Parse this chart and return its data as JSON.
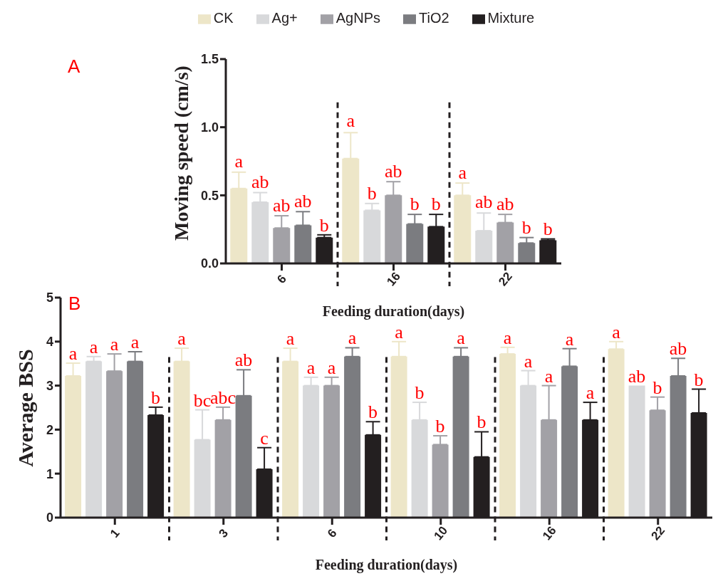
{
  "chart_data": [
    {
      "type": "bar",
      "categories": [
        "6",
        "16",
        "22"
      ],
      "xlabel": "Feeding duration(days)",
      "ylabel": "Moving speed (cm/s)",
      "ylim": [
        0,
        1.5
      ],
      "yticks": [
        {
          "value": 0,
          "label": "0.0"
        },
        {
          "value": 0.5,
          "label": "0.5"
        },
        {
          "value": 1,
          "label": "1.0"
        },
        {
          "value": 1.5,
          "label": "1.5"
        }
      ],
      "legend": "top",
      "annotations": [
        "A"
      ],
      "series": [
        {
          "name": "CK",
          "color": "#ede6c8",
          "values": [
            0.55,
            0.77,
            0.5
          ],
          "errors": [
            [
              0.55,
              0.67
            ],
            [
              0.77,
              0.96
            ],
            [
              0.5,
              0.59
            ]
          ],
          "value_labels": [
            "a",
            "a",
            "a"
          ]
        },
        {
          "name": "Ag+",
          "color": "#d8d9db",
          "values": [
            0.45,
            0.39,
            0.24
          ],
          "errors": [
            [
              0.45,
              0.52
            ],
            [
              0.39,
              0.44
            ],
            [
              0.24,
              0.37
            ]
          ],
          "value_labels": [
            "ab",
            "b",
            "ab"
          ]
        },
        {
          "name": "AgNPs",
          "color": "#a2a1a6",
          "values": [
            0.26,
            0.5,
            0.3
          ],
          "errors": [
            [
              0.26,
              0.35
            ],
            [
              0.5,
              0.6
            ],
            [
              0.3,
              0.36
            ]
          ],
          "value_labels": [
            "ab",
            "ab",
            "ab"
          ]
        },
        {
          "name": "TiO2",
          "color": "#7b7c80",
          "values": [
            0.28,
            0.29,
            0.15
          ],
          "errors": [
            [
              0.28,
              0.38
            ],
            [
              0.29,
              0.36
            ],
            [
              0.15,
              0.19
            ]
          ],
          "value_labels": [
            "ab",
            "b",
            "b"
          ]
        },
        {
          "name": "Mixture",
          "color": "#231f20",
          "values": [
            0.19,
            0.27,
            0.17
          ],
          "errors": [
            [
              0.19,
              0.21
            ],
            [
              0.27,
              0.36
            ],
            [
              0.17,
              0.18
            ]
          ],
          "value_labels": [
            "b",
            "b",
            "b"
          ]
        }
      ]
    },
    {
      "type": "bar",
      "categories": [
        "1",
        "3",
        "6",
        "10",
        "16",
        "22"
      ],
      "xlabel": "Feeding duration(days)",
      "ylabel": "Average BSS",
      "ylim": [
        0,
        5
      ],
      "yticks": [
        0,
        1,
        2,
        3,
        4,
        5
      ],
      "annotations": [
        "B"
      ],
      "series": [
        {
          "color": "#ede6c8",
          "values": [
            3.22,
            3.55,
            3.55,
            3.66,
            3.72,
            3.83
          ],
          "errors": [
            [
              3.22,
              3.51
            ],
            [
              3.55,
              3.85
            ],
            [
              3.55,
              3.85
            ],
            [
              3.66,
              4.0
            ],
            [
              3.72,
              3.87
            ],
            [
              3.83,
              4.0
            ]
          ],
          "value_labels": [
            "a",
            "a",
            "a",
            "a",
            "a",
            "a"
          ]
        },
        {
          "color": "#d8d9db",
          "values": [
            3.55,
            1.77,
            3.0,
            2.22,
            3.0,
            3.0
          ],
          "errors": [
            [
              3.55,
              3.66
            ],
            [
              1.77,
              2.45
            ],
            [
              3.0,
              3.19
            ],
            [
              2.22,
              2.62
            ],
            [
              3.0,
              3.34
            ],
            null
          ],
          "value_labels": [
            "a",
            "bc",
            "a",
            "b",
            "a",
            "ab"
          ]
        },
        {
          "color": "#a2a1a6",
          "values": [
            3.33,
            2.22,
            3.0,
            1.66,
            2.22,
            2.44
          ],
          "errors": [
            [
              3.33,
              3.72
            ],
            [
              2.22,
              2.51
            ],
            [
              3.0,
              3.19
            ],
            [
              1.66,
              1.86
            ],
            [
              2.22,
              3.0
            ],
            [
              2.44,
              2.74
            ]
          ],
          "value_labels": [
            "a",
            "abc",
            "a",
            "b",
            "a",
            "b"
          ]
        },
        {
          "color": "#7b7c80",
          "values": [
            3.55,
            2.77,
            3.66,
            3.66,
            3.44,
            3.22
          ],
          "errors": [
            [
              3.55,
              3.77
            ],
            [
              2.77,
              3.36
            ],
            [
              3.66,
              3.86
            ],
            [
              3.66,
              3.86
            ],
            [
              3.44,
              3.84
            ],
            [
              3.22,
              3.62
            ]
          ],
          "value_labels": [
            "a",
            "ab",
            "a",
            "a",
            "a",
            "ab"
          ]
        },
        {
          "color": "#231f20",
          "values": [
            2.33,
            1.1,
            1.88,
            1.38,
            2.22,
            2.38
          ],
          "errors": [
            [
              2.33,
              2.51
            ],
            [
              1.1,
              1.59
            ],
            [
              1.88,
              2.18
            ],
            [
              1.38,
              1.95
            ],
            [
              2.22,
              2.62
            ],
            [
              2.38,
              2.92
            ]
          ],
          "value_labels": [
            "b",
            "c",
            "b",
            "b",
            "a",
            "b"
          ]
        }
      ]
    }
  ]
}
